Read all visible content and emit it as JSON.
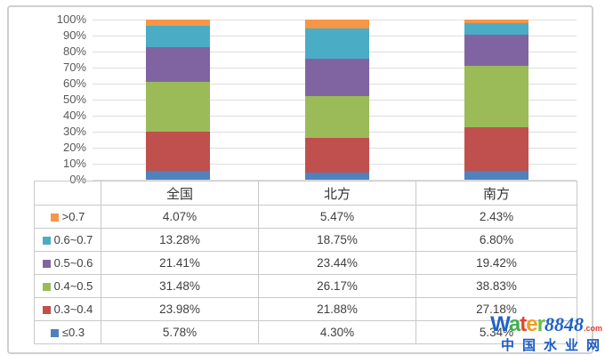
{
  "chart_data": {
    "type": "bar",
    "subtype": "100%-stacked-column-with-data-table",
    "categories": [
      "全国",
      "北方",
      "南方"
    ],
    "series": [
      {
        "name": ">0.7",
        "color": "#F79646",
        "values": [
          4.07,
          5.47,
          2.43
        ],
        "labels": [
          "4.07%",
          "5.47%",
          "2.43%"
        ]
      },
      {
        "name": "0.6~0.7",
        "color": "#4BACC6",
        "values": [
          13.28,
          18.75,
          6.8
        ],
        "labels": [
          "13.28%",
          "18.75%",
          "6.80%"
        ]
      },
      {
        "name": "0.5~0.6",
        "color": "#8064A2",
        "values": [
          21.41,
          23.44,
          19.42
        ],
        "labels": [
          "21.41%",
          "23.44%",
          "19.42%"
        ]
      },
      {
        "name": "0.4~0.5",
        "color": "#9BBB59",
        "values": [
          31.48,
          26.17,
          38.83
        ],
        "labels": [
          "31.48%",
          "26.17%",
          "38.83%"
        ]
      },
      {
        "name": "0.3~0.4",
        "color": "#C0504D",
        "values": [
          23.98,
          21.88,
          27.18
        ],
        "labels": [
          "23.98%",
          "21.88%",
          "27.18%"
        ]
      },
      {
        "name": "≤0.3",
        "color": "#4F81BD",
        "values": [
          5.78,
          4.3,
          5.34
        ],
        "labels": [
          "5.78%",
          "4.30%",
          "5.34%"
        ]
      }
    ],
    "stack_order_bottom_to_top": [
      "≤0.3",
      "0.3~0.4",
      "0.4~0.5",
      "0.5~0.6",
      "0.6~0.7",
      ">0.7"
    ],
    "y_axis": {
      "ticks": [
        "100%",
        "90%",
        "80%",
        "70%",
        "60%",
        "50%",
        "40%",
        "30%",
        "20%",
        "10%",
        "0%"
      ],
      "min": 0,
      "max": 100,
      "grid": true
    },
    "legend_position": "left-column-of-data-table",
    "title": "",
    "xlabel": "",
    "ylabel": ""
  },
  "watermark": {
    "brand_letters": [
      {
        "ch": "W",
        "color": "#1f63c8"
      },
      {
        "ch": "a",
        "color": "#3faf4e"
      },
      {
        "ch": "t",
        "color": "#e6402e"
      },
      {
        "ch": "e",
        "color": "#f59b1e"
      },
      {
        "ch": "r",
        "color": "#6abf3f"
      }
    ],
    "brand_number": "8848",
    "brand_tld": ".com",
    "subtitle": "中国水业网"
  }
}
